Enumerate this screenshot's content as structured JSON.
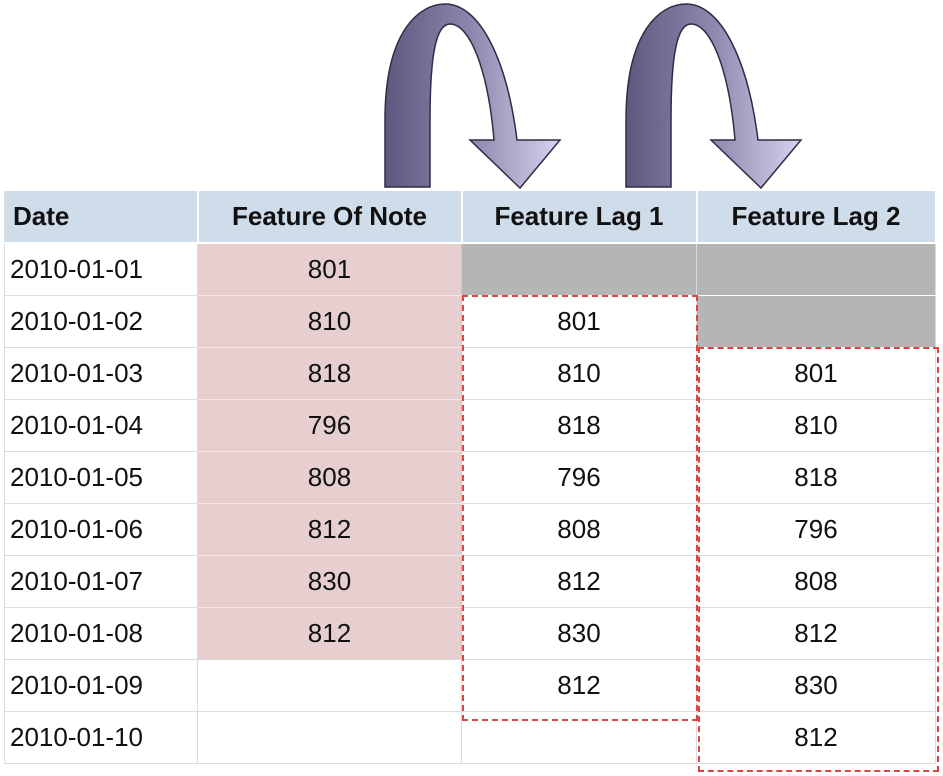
{
  "table": {
    "headers": [
      "Date",
      "Feature Of Note",
      "Feature Lag 1",
      "Feature Lag 2"
    ],
    "rows": [
      [
        "2010-01-01",
        "801",
        "",
        ""
      ],
      [
        "2010-01-02",
        "810",
        "801",
        ""
      ],
      [
        "2010-01-03",
        "818",
        "810",
        "801"
      ],
      [
        "2010-01-04",
        "796",
        "818",
        "810"
      ],
      [
        "2010-01-05",
        "808",
        "796",
        "818"
      ],
      [
        "2010-01-06",
        "812",
        "808",
        "796"
      ],
      [
        "2010-01-07",
        "830",
        "812",
        "808"
      ],
      [
        "2010-01-08",
        "812",
        "830",
        "812"
      ],
      [
        "2010-01-09",
        "",
        "812",
        "830"
      ],
      [
        "2010-01-10",
        "",
        "",
        "812"
      ]
    ]
  },
  "colors": {
    "header_bg": "#cfdcea",
    "original_column_bg": "#e8cfcf",
    "missing_cell_bg": "#b5b5b5",
    "dashed_outline": "#dd4444",
    "arrow_light": "#cfc8e8",
    "arrow_dark": "#5e587e"
  },
  "arrows": [
    {
      "from": "Feature Of Note",
      "to": "Feature Lag 1"
    },
    {
      "from": "Feature Lag 1",
      "to": "Feature Lag 2"
    }
  ]
}
